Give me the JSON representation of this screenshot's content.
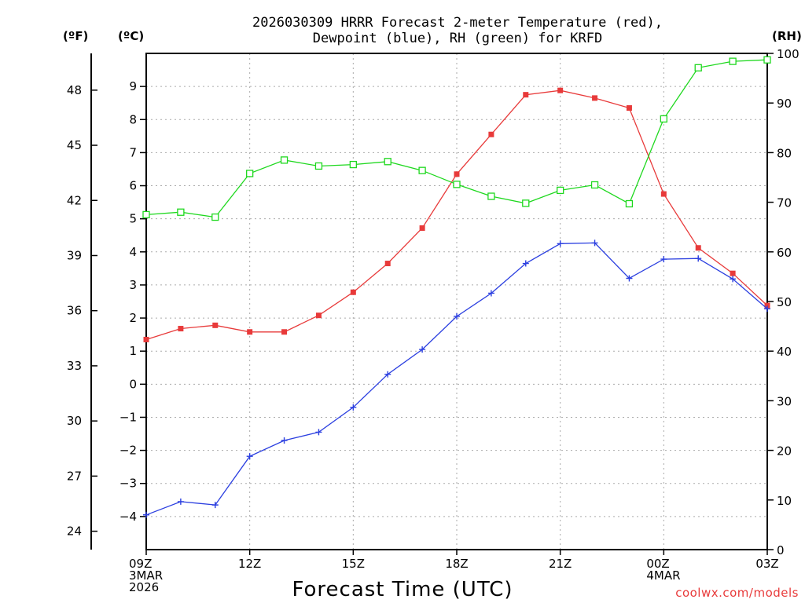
{
  "chart_data": {
    "type": "line",
    "title_line1": "2026030309 HRRR Forecast 2-meter Temperature (red),",
    "title_line2": "Dewpoint (blue), RH (green) for KRFD",
    "xlabel": "Forecast Time (UTC)",
    "credit": "coolwx.com/models",
    "units": {
      "fahrenheit": "(ºF)",
      "celsius": "(ºC)",
      "rh": "(RH)"
    },
    "x_hours": [
      9,
      10,
      11,
      12,
      13,
      14,
      15,
      16,
      17,
      18,
      19,
      20,
      21,
      22,
      23,
      24,
      25,
      26,
      27
    ],
    "x_ticks": [
      {
        "hour": 9,
        "lines": [
          "09Z",
          "3MAR",
          "2026"
        ]
      },
      {
        "hour": 12,
        "lines": [
          "12Z"
        ]
      },
      {
        "hour": 15,
        "lines": [
          "15Z"
        ]
      },
      {
        "hour": 18,
        "lines": [
          "18Z"
        ]
      },
      {
        "hour": 21,
        "lines": [
          "21Z"
        ]
      },
      {
        "hour": 24,
        "lines": [
          "00Z",
          "4MAR"
        ]
      },
      {
        "hour": 27,
        "lines": [
          "03Z"
        ]
      }
    ],
    "celsius_ylim": [
      -5,
      10
    ],
    "celsius_ticks": [
      "-4",
      "-3",
      "-2",
      "-1",
      "0",
      "1",
      "2",
      "3",
      "4",
      "5",
      "6",
      "7",
      "8",
      "9"
    ],
    "fahrenheit_ticks": [
      "24",
      "27",
      "30",
      "33",
      "36",
      "39",
      "42",
      "45",
      "48"
    ],
    "rh_ylim": [
      0,
      100
    ],
    "rh_ticks": [
      "0",
      "10",
      "20",
      "30",
      "40",
      "50",
      "60",
      "70",
      "80",
      "90",
      "100"
    ],
    "series": [
      {
        "name": "Temperature",
        "unit": "C",
        "color": "#e83a3a",
        "marker": "filled-square",
        "values": [
          1.35,
          1.68,
          1.78,
          1.58,
          1.58,
          2.08,
          2.78,
          3.65,
          4.72,
          6.35,
          7.55,
          8.75,
          8.88,
          8.65,
          8.35,
          5.75,
          4.12,
          3.35,
          2.38
        ]
      },
      {
        "name": "Dewpoint",
        "unit": "C",
        "color": "#2b3fe0",
        "marker": "plus",
        "values": [
          -3.95,
          -3.55,
          -3.65,
          -2.18,
          -1.7,
          -1.45,
          -0.7,
          0.3,
          1.05,
          2.05,
          2.75,
          3.65,
          4.25,
          4.27,
          3.2,
          3.78,
          3.8,
          3.18,
          2.28
        ]
      },
      {
        "name": "RH",
        "unit": "%",
        "color": "#1ed81e",
        "marker": "open-square",
        "values": [
          67.5,
          68,
          67,
          75.8,
          78.5,
          77.3,
          77.6,
          78.2,
          76.4,
          73.6,
          71.2,
          69.8,
          72.4,
          73.5,
          69.7,
          86.8,
          97.1,
          98.4,
          98.7
        ]
      }
    ]
  }
}
